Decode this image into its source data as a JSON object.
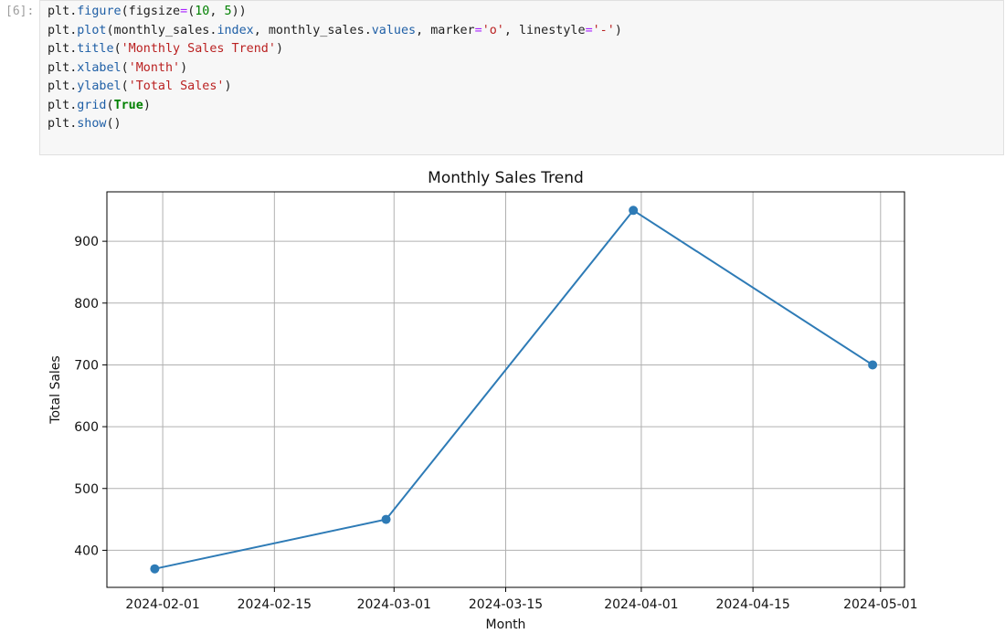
{
  "cell": {
    "prompt": "[6]:",
    "code_lines": [
      [
        [
          "plt",
          ""
        ],
        [
          ".",
          ""
        ],
        [
          "figure",
          "attr"
        ],
        [
          "(figsize",
          ""
        ],
        [
          "=",
          "op"
        ],
        [
          "(",
          ""
        ],
        [
          "10",
          "num"
        ],
        [
          ", ",
          ""
        ],
        [
          "5",
          "num"
        ],
        [
          "))",
          ""
        ]
      ],
      [
        [
          "plt",
          ""
        ],
        [
          ".",
          ""
        ],
        [
          "plot",
          "attr"
        ],
        [
          "(monthly_sales",
          ""
        ],
        [
          ".",
          ""
        ],
        [
          "index",
          "attr"
        ],
        [
          ", monthly_sales",
          ""
        ],
        [
          ".",
          ""
        ],
        [
          "values",
          "attr"
        ],
        [
          ", marker",
          ""
        ],
        [
          "=",
          "op"
        ],
        [
          "'o'",
          "str"
        ],
        [
          ", linestyle",
          ""
        ],
        [
          "=",
          "op"
        ],
        [
          "'-'",
          "str"
        ],
        [
          ")",
          ""
        ]
      ],
      [
        [
          "plt",
          ""
        ],
        [
          ".",
          ""
        ],
        [
          "title",
          "attr"
        ],
        [
          "(",
          ""
        ],
        [
          "'Monthly Sales Trend'",
          "str"
        ],
        [
          ")",
          ""
        ]
      ],
      [
        [
          "plt",
          ""
        ],
        [
          ".",
          ""
        ],
        [
          "xlabel",
          "attr"
        ],
        [
          "(",
          ""
        ],
        [
          "'Month'",
          "str"
        ],
        [
          ")",
          ""
        ]
      ],
      [
        [
          "plt",
          ""
        ],
        [
          ".",
          ""
        ],
        [
          "ylabel",
          "attr"
        ],
        [
          "(",
          ""
        ],
        [
          "'Total Sales'",
          "str"
        ],
        [
          ")",
          ""
        ]
      ],
      [
        [
          "plt",
          ""
        ],
        [
          ".",
          ""
        ],
        [
          "grid",
          "attr"
        ],
        [
          "(",
          ""
        ],
        [
          "True",
          "kw"
        ],
        [
          ")",
          ""
        ]
      ],
      [
        [
          "plt",
          ""
        ],
        [
          ".",
          ""
        ],
        [
          "show",
          "attr"
        ],
        [
          "()",
          ""
        ]
      ]
    ]
  },
  "chart_data": {
    "type": "line",
    "title": "Monthly Sales Trend",
    "xlabel": "Month",
    "ylabel": "Total Sales",
    "x": [
      "2024-01-31",
      "2024-02-29",
      "2024-03-31",
      "2024-04-30"
    ],
    "series": [
      {
        "values": [
          370,
          450,
          950,
          700
        ]
      }
    ],
    "x_ticks": [
      "2024-02-01",
      "2024-02-15",
      "2024-03-01",
      "2024-03-15",
      "2024-04-01",
      "2024-04-15",
      "2024-05-01"
    ],
    "y_ticks": [
      400,
      500,
      600,
      700,
      800,
      900
    ],
    "xlim": [
      "2024-01-25",
      "2024-05-04"
    ],
    "ylim": [
      340,
      980
    ],
    "grid": true,
    "marker": "o",
    "linestyle": "-",
    "line_color": "#2e7bb6",
    "axes_color": "#000000",
    "grid_color": "#b0b0b0"
  }
}
